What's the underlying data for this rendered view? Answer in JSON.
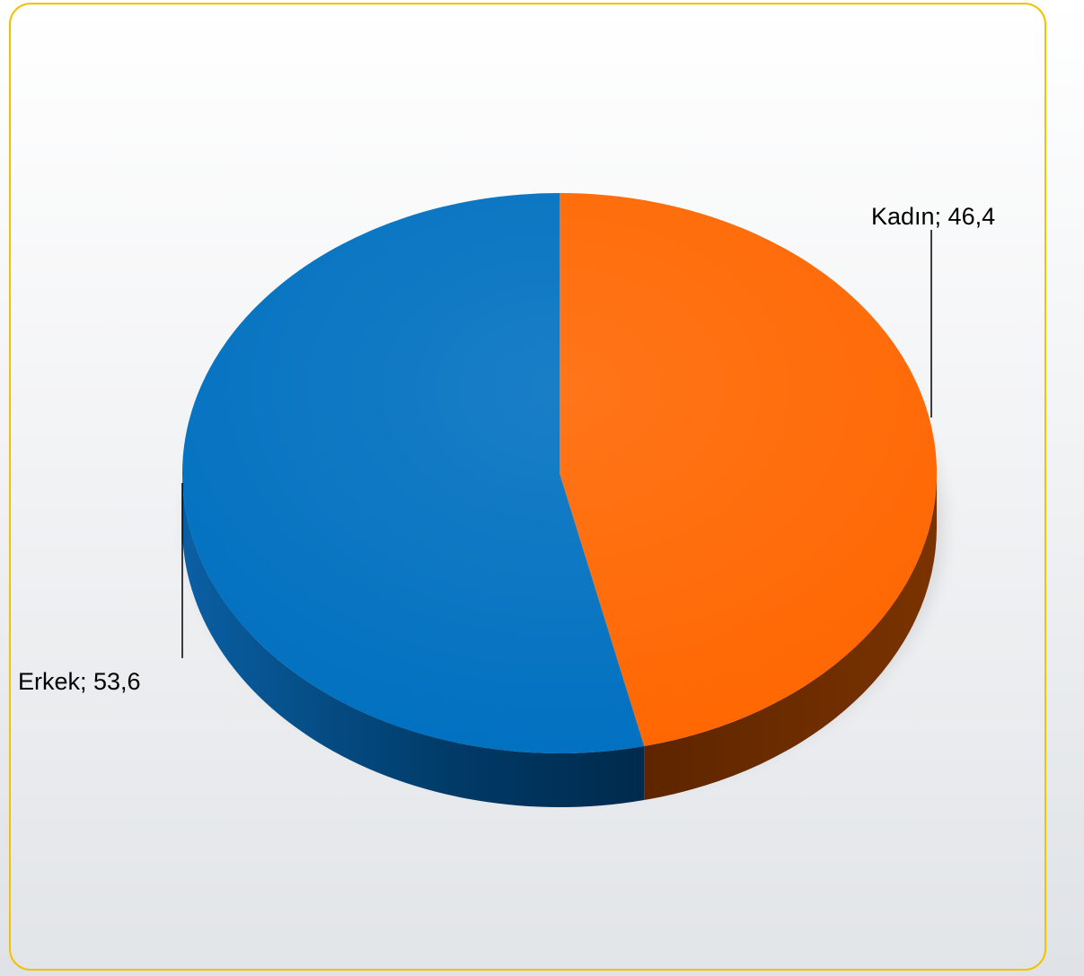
{
  "chart_data": {
    "type": "pie",
    "style": "3d",
    "title": "",
    "slices": [
      {
        "label": "Kadın",
        "value": 46.4,
        "value_text": "46,4",
        "color": "#ff6600",
        "side_color": "#6b2a00"
      },
      {
        "label": "Erkek",
        "value": 53.6,
        "value_text": "53,6",
        "color": "#0070c0",
        "side_color": "#003a66"
      }
    ],
    "data_labels": [
      "Kadın; 46,4",
      "Erkek; 53,6"
    ],
    "legend": "none"
  },
  "colors": {
    "frame_border": "#f2c200",
    "kadin": "#ff6600",
    "erkek": "#0070c0"
  }
}
